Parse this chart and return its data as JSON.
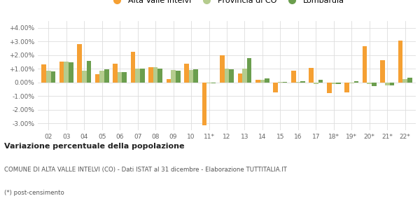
{
  "categories": [
    "02",
    "03",
    "04",
    "05",
    "06",
    "07",
    "08",
    "09",
    "10",
    "11*",
    "12",
    "13",
    "14",
    "15",
    "16",
    "17",
    "18*",
    "19*",
    "20*",
    "21*",
    "22*"
  ],
  "alta_valle": [
    1.3,
    1.55,
    2.8,
    0.6,
    1.35,
    2.25,
    1.1,
    0.25,
    1.35,
    -3.15,
    2.0,
    0.65,
    0.2,
    -0.75,
    0.85,
    1.05,
    -0.8,
    -0.75,
    2.65,
    1.65,
    3.05
  ],
  "provincia_co": [
    0.85,
    1.55,
    0.85,
    0.85,
    0.75,
    1.0,
    1.1,
    0.9,
    0.9,
    -0.05,
    1.0,
    1.0,
    0.2,
    0.02,
    0.05,
    -0.1,
    -0.1,
    -0.05,
    -0.1,
    -0.2,
    0.25
  ],
  "lombardia": [
    0.8,
    1.5,
    1.6,
    0.95,
    0.75,
    1.0,
    1.0,
    0.85,
    0.95,
    -0.05,
    0.95,
    1.8,
    0.3,
    0.02,
    0.1,
    0.2,
    -0.1,
    0.1,
    -0.25,
    -0.2,
    0.35
  ],
  "color_alta": "#f5a033",
  "color_provincia": "#b5cc8e",
  "color_lombardia": "#6b9e4e",
  "ylim": [
    -3.5,
    4.5
  ],
  "ytick_vals": [
    -3.0,
    -2.0,
    -1.0,
    0.0,
    1.0,
    2.0,
    3.0,
    4.0
  ],
  "ytick_labels": [
    "-3.00%",
    "-2.00%",
    "-1.00%",
    "0.00%",
    "+1.00%",
    "+2.00%",
    "+3.00%",
    "+4.00%"
  ],
  "legend_labels": [
    "Alta Valle Intelvi",
    "Provincia di CO",
    "Lombardia"
  ],
  "title": "Variazione percentuale della popolazione",
  "subtitle": "COMUNE DI ALTA VALLE INTELVI (CO) - Dati ISTAT al 31 dicembre - Elaborazione TUTTITALIA.IT",
  "footnote": "(*) post-censimento",
  "bg_color": "#ffffff",
  "grid_color": "#dddddd",
  "bar_width": 0.26
}
